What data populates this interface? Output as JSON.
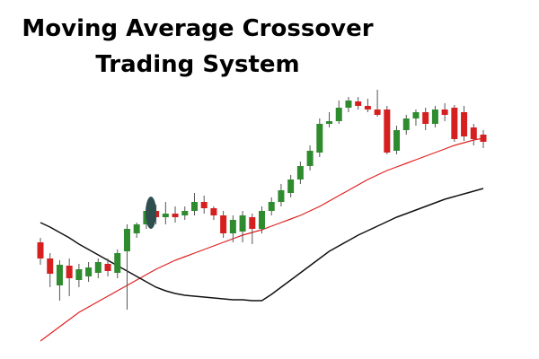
{
  "chart_data": {
    "type": "candlestick",
    "title": "Moving Average Crossover Trading System",
    "ylim": [
      0,
      400
    ],
    "up_color": "#2e8b2e",
    "down_color": "#d62020",
    "candles": {
      "open": [
        130,
        112,
        82,
        104,
        88,
        92,
        96,
        106,
        96,
        120,
        140,
        150,
        165,
        158,
        162,
        160,
        165,
        175,
        168,
        160,
        140,
        142,
        158,
        145,
        165,
        175,
        185,
        200,
        215,
        230,
        262,
        265,
        280,
        287,
        282,
        278,
        278,
        232,
        255,
        268,
        275,
        262,
        278,
        280,
        275,
        258,
        250
      ],
      "high": [
        135,
        118,
        110,
        112,
        106,
        108,
        112,
        112,
        122,
        150,
        152,
        170,
        172,
        175,
        170,
        170,
        185,
        182,
        170,
        165,
        160,
        165,
        162,
        170,
        180,
        195,
        205,
        220,
        238,
        268,
        275,
        288,
        292,
        292,
        290,
        300,
        282,
        260,
        272,
        278,
        280,
        282,
        285,
        283,
        282,
        262,
        255
      ],
      "low": [
        105,
        80,
        65,
        70,
        80,
        86,
        90,
        92,
        90,
        55,
        135,
        145,
        150,
        150,
        152,
        155,
        160,
        162,
        155,
        135,
        130,
        130,
        128,
        140,
        160,
        170,
        180,
        195,
        210,
        225,
        258,
        262,
        275,
        278,
        275,
        270,
        228,
        228,
        250,
        260,
        255,
        258,
        265,
        242,
        243,
        238,
        235
      ],
      "close": [
        112,
        95,
        105,
        90,
        100,
        102,
        108,
        98,
        118,
        145,
        150,
        165,
        158,
        162,
        158,
        165,
        175,
        168,
        160,
        140,
        155,
        160,
        145,
        165,
        175,
        188,
        200,
        215,
        232,
        262,
        265,
        280,
        288,
        282,
        278,
        272,
        230,
        255,
        268,
        275,
        262,
        278,
        272,
        245,
        248,
        245,
        242
      ]
    },
    "lines": [
      {
        "color": "#e02020",
        "values": [
          20,
          28,
          36,
          44,
          52,
          58,
          64,
          70,
          76,
          82,
          88,
          94,
          100,
          105,
          110,
          114,
          118,
          122,
          126,
          130,
          134,
          138,
          141,
          144,
          148,
          152,
          156,
          160,
          165,
          170,
          176,
          182,
          188,
          194,
          200,
          205,
          210,
          214,
          218,
          222,
          226,
          230,
          234,
          238,
          241,
          244,
          246
        ]
      },
      {
        "color": "#111111",
        "values": [
          152,
          147,
          141,
          135,
          128,
          122,
          116,
          110,
          104,
          98,
          92,
          86,
          80,
          76,
          73,
          71,
          70,
          69,
          68,
          67,
          66,
          66,
          65,
          65,
          72,
          80,
          88,
          96,
          104,
          112,
          120,
          126,
          132,
          138,
          143,
          148,
          153,
          158,
          162,
          166,
          170,
          174,
          178,
          181,
          184,
          187,
          190
        ]
      }
    ]
  }
}
